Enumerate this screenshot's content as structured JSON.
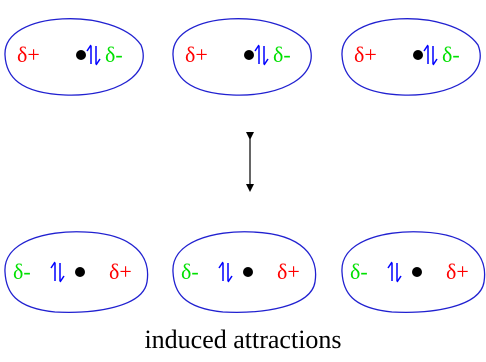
{
  "rows": [
    {
      "molecules": [
        {
          "left": "δ+",
          "right": "δ-"
        },
        {
          "left": "δ+",
          "right": "δ-"
        },
        {
          "left": "δ+",
          "right": "δ-"
        }
      ]
    },
    {
      "molecules": [
        {
          "left": "δ-",
          "right": "δ+"
        },
        {
          "left": "δ-",
          "right": "δ+"
        },
        {
          "left": "δ-",
          "right": "δ+"
        }
      ]
    }
  ],
  "caption": "induced attractions"
}
